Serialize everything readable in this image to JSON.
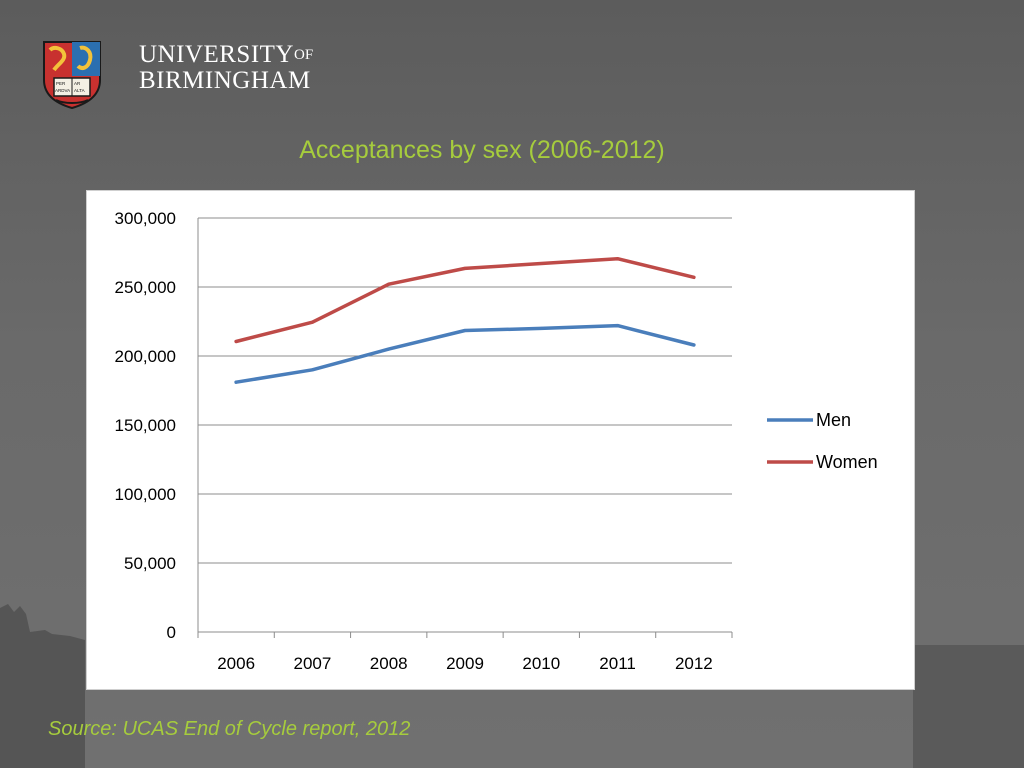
{
  "branding": {
    "line1": "UNIVERSITY",
    "of": "OF",
    "line2": "BIRMINGHAM",
    "crest_icon": "university-crest-icon",
    "crest_book_text": [
      "PER",
      "AR",
      "ARDVA",
      "ALTA"
    ]
  },
  "slide": {
    "title": "Acceptances by sex (2006-2012)",
    "source": "Source: UCAS End of Cycle report, 2012"
  },
  "colors": {
    "title": "#a6cc3d",
    "men": "#4a7ebb",
    "women": "#be4b48",
    "grid": "#8c8c8c"
  },
  "chart_data": {
    "type": "line",
    "title": "",
    "xlabel": "",
    "ylabel": "",
    "categories": [
      "2006",
      "2007",
      "2008",
      "2009",
      "2010",
      "2011",
      "2012"
    ],
    "ylim": [
      0,
      300000
    ],
    "yticks": [
      0,
      50000,
      100000,
      150000,
      200000,
      250000,
      300000
    ],
    "ytick_labels": [
      "0",
      "50,000",
      "100,000",
      "150,000",
      "200,000",
      "250,000",
      "300,000"
    ],
    "grid": true,
    "legend_position": "right",
    "series": [
      {
        "name": "Men",
        "color": "#4a7ebb",
        "values": [
          181000,
          190000,
          205000,
          218500,
          220000,
          222000,
          208000
        ]
      },
      {
        "name": "Women",
        "color": "#be4b48",
        "values": [
          210500,
          224500,
          252000,
          263500,
          267000,
          270500,
          257000
        ]
      }
    ]
  }
}
